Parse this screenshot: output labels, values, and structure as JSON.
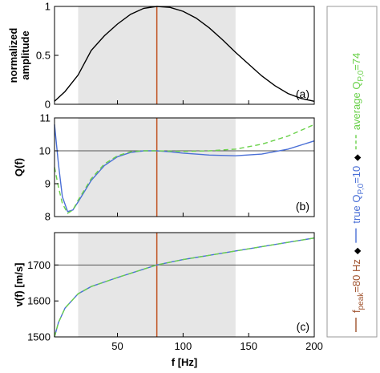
{
  "chart_data": [
    {
      "type": "line",
      "ylabel": [
        "normalized",
        "amplitude"
      ],
      "panel_label": "(a)",
      "x": [
        2,
        10,
        20,
        30,
        40,
        50,
        60,
        70,
        80,
        90,
        100,
        110,
        120,
        130,
        140,
        150,
        160,
        170,
        180,
        190,
        200
      ],
      "series": [
        {
          "color": "#000000",
          "dash": false,
          "values": [
            0.03,
            0.13,
            0.3,
            0.55,
            0.7,
            0.82,
            0.92,
            0.98,
            1,
            0.99,
            0.95,
            0.88,
            0.78,
            0.66,
            0.53,
            0.41,
            0.29,
            0.19,
            0.11,
            0.06,
            0.03
          ]
        }
      ],
      "xlim": [
        2,
        200
      ],
      "xticks": [
        50,
        100,
        150,
        200
      ],
      "ylim": [
        0,
        1
      ],
      "yticks": [
        0,
        0.5,
        1
      ],
      "shade_x": [
        20,
        140
      ],
      "vline_x": 80,
      "vline_color": "#c0501e"
    },
    {
      "type": "line",
      "ylabel": [
        "Q(f)"
      ],
      "panel_label": "(b)",
      "x": [
        2,
        5,
        8,
        12,
        16,
        20,
        30,
        40,
        50,
        60,
        70,
        80,
        90,
        100,
        120,
        140,
        160,
        180,
        200
      ],
      "series": [
        {
          "color": "#4a6fd6",
          "dash": false,
          "values": [
            10.8,
            9.6,
            8.6,
            8.15,
            8.2,
            8.45,
            9.1,
            9.55,
            9.82,
            9.95,
            10.0,
            10.0,
            9.97,
            9.93,
            9.87,
            9.85,
            9.9,
            10.05,
            10.3
          ]
        },
        {
          "color": "#6ad14a",
          "dash": true,
          "values": [
            9.5,
            8.9,
            8.4,
            8.1,
            8.2,
            8.5,
            9.15,
            9.6,
            9.85,
            9.97,
            10.0,
            10.0,
            9.99,
            9.98,
            10.0,
            10.05,
            10.2,
            10.45,
            10.8
          ]
        }
      ],
      "xlim": [
        2,
        200
      ],
      "xticks": [
        50,
        100,
        150,
        200
      ],
      "ylim": [
        8,
        11
      ],
      "yticks": [
        8,
        9,
        10,
        11
      ],
      "shade_x": [
        20,
        140
      ],
      "vline_x": 80,
      "vline_color": "#c0501e",
      "hline_y": 10
    },
    {
      "type": "line",
      "ylabel": [
        "v(f) [m/s]"
      ],
      "panel_label": "(c)",
      "xlabel": "f [Hz]",
      "x": [
        2,
        5,
        10,
        20,
        30,
        50,
        80,
        100,
        150,
        200
      ],
      "series": [
        {
          "color": "#4a6fd6",
          "dash": false,
          "values": [
            1500,
            1540,
            1580,
            1620,
            1640,
            1665,
            1700,
            1715,
            1745,
            1775
          ]
        },
        {
          "color": "#6ad14a",
          "dash": true,
          "values": [
            1500,
            1540,
            1580,
            1620,
            1640,
            1665,
            1700,
            1715,
            1745,
            1775
          ]
        }
      ],
      "xlim": [
        2,
        200
      ],
      "xticks": [
        50,
        100,
        150,
        200
      ],
      "ylim": [
        1500,
        1790
      ],
      "yticks": [
        1500,
        1600,
        1700
      ],
      "shade_x": [
        20,
        140
      ],
      "vline_x": 80,
      "vline_color": "#c0501e",
      "hline_y": 1700
    }
  ],
  "legend": {
    "separator": "◆",
    "entries": [
      {
        "color": "#a0522d",
        "dash": false,
        "parts": [
          {
            "text": "f"
          },
          {
            "text": "peak",
            "sub": true
          },
          {
            "text": "=80 Hz"
          }
        ]
      },
      {
        "color": "#4a6fd6",
        "dash": false,
        "parts": [
          {
            "text": "true Q"
          },
          {
            "text": "P,0",
            "sub": true
          },
          {
            "text": "=10"
          }
        ]
      },
      {
        "color": "#6ad14a",
        "dash": true,
        "parts": [
          {
            "text": "average Q"
          },
          {
            "text": "P,0",
            "sub": true
          },
          {
            "text": "=74"
          }
        ]
      }
    ]
  }
}
